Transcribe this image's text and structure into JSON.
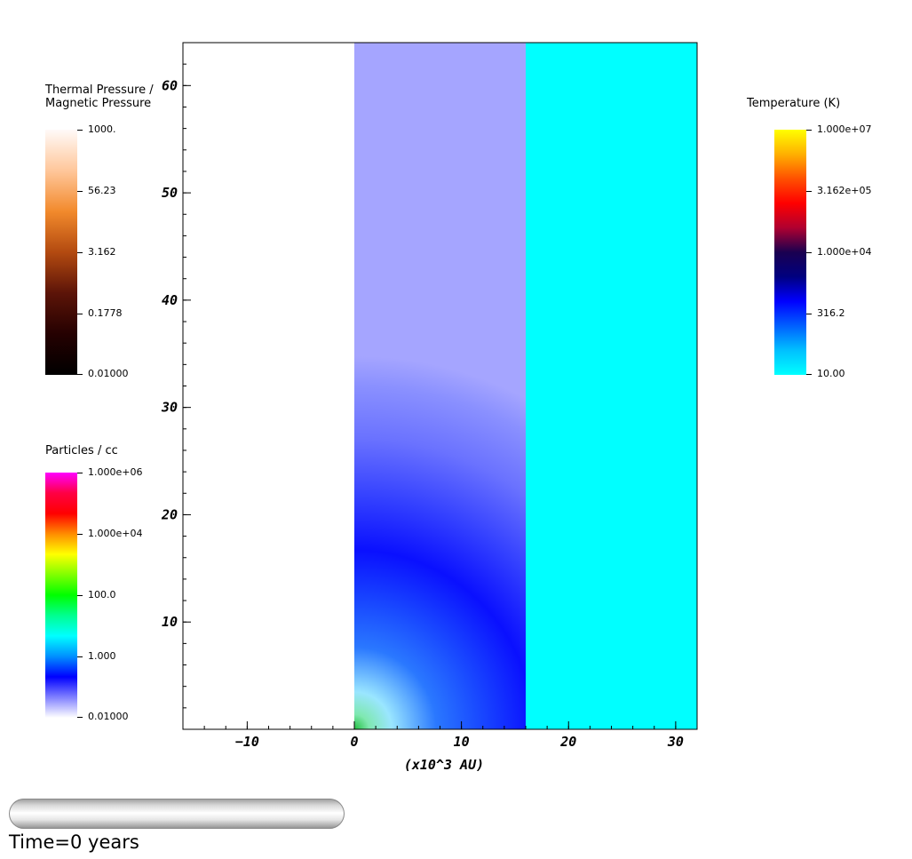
{
  "chart_data": {
    "type": "heatmap",
    "xlabel": "(x10^3 AU)",
    "ylabel": "",
    "x_ticks": [
      -10,
      0,
      10,
      20,
      30
    ],
    "y_ticks": [
      10,
      20,
      30,
      40,
      50,
      60
    ],
    "xlim": [
      -16,
      32
    ],
    "ylim": [
      0,
      64
    ],
    "grid": false,
    "regions": [
      {
        "name": "Thermal Pressure / Magnetic Pressure",
        "x_range": [
          -16,
          0
        ],
        "description": "blank"
      },
      {
        "name": "Particles / cc",
        "x_range": [
          0,
          16
        ],
        "colormap": "density"
      },
      {
        "name": "Temperature (K)",
        "x_range": [
          16,
          32
        ],
        "value": 10.0
      }
    ],
    "colorbars": [
      {
        "title": "Thermal Pressure /\nMagnetic Pressure",
        "labels": [
          "1000.",
          "56.23",
          "3.162",
          "0.1778",
          "0.01000"
        ],
        "min": 0.01,
        "max": 1000,
        "scale": "log",
        "colors": [
          "#fffaf8",
          "#ffc79b",
          "#f28a2c",
          "#b34a10",
          "#5c1408",
          "#250101",
          "#000000"
        ]
      },
      {
        "title": "Particles / cc",
        "labels": [
          "1.000e+06",
          "1.000e+04",
          "100.0",
          "1.000",
          "0.01000"
        ],
        "min": 0.01,
        "max": 1000000,
        "scale": "log",
        "colors": [
          "#ff00ff",
          "#ff0044",
          "#ff0000",
          "#ff8c00",
          "#ffff00",
          "#80ff00",
          "#00ff00",
          "#00ff90",
          "#00ffff",
          "#0090ff",
          "#0000ff",
          "#8080ff",
          "#ffffff"
        ]
      },
      {
        "title": "Temperature (K)",
        "labels": [
          "1.000e+07",
          "3.162e+05",
          "1.000e+04",
          "316.2",
          "10.00"
        ],
        "min": 10,
        "max": 10000000,
        "scale": "log",
        "colors": [
          "#ffff00",
          "#ffb000",
          "#ff5000",
          "#ff0000",
          "#b00030",
          "#1a0050",
          "#000080",
          "#0000ff",
          "#0060ff",
          "#00c0ff",
          "#00ffff"
        ]
      }
    ]
  },
  "progress": {
    "value": 0.0
  },
  "time_label": "Time=0 years"
}
